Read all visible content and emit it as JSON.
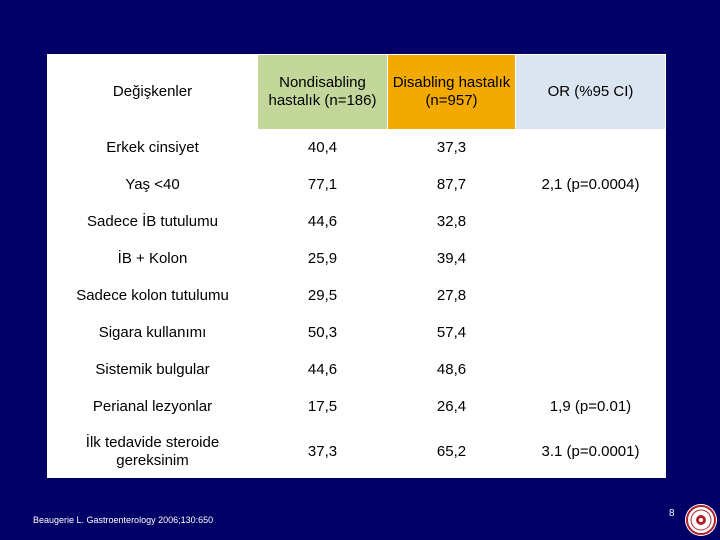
{
  "table": {
    "headers": [
      "Değişkenler",
      "Nondisabling hastalık (n=186)",
      "Disabling hastalık (n=957)",
      "OR (%95 CI)"
    ],
    "rows": [
      {
        "label": "Erkek cinsiyet",
        "nondisabling": "40,4",
        "disabling": "37,3",
        "or": ""
      },
      {
        "label": "Yaş <40",
        "nondisabling": "77,1",
        "disabling": "87,7",
        "or": "2,1  (p=0.0004)"
      },
      {
        "label": "Sadece İB tutulumu",
        "nondisabling": "44,6",
        "disabling": "32,8",
        "or": ""
      },
      {
        "label": "İB + Kolon",
        "nondisabling": "25,9",
        "disabling": "39,4",
        "or": ""
      },
      {
        "label": "Sadece kolon tutulumu",
        "nondisabling": "29,5",
        "disabling": "27,8",
        "or": ""
      },
      {
        "label": "Sigara kullanımı",
        "nondisabling": "50,3",
        "disabling": "57,4",
        "or": ""
      },
      {
        "label": "Sistemik bulgular",
        "nondisabling": "44,6",
        "disabling": "48,6",
        "or": ""
      },
      {
        "label": "Perianal  lezyonlar",
        "nondisabling": "17,5",
        "disabling": "26,4",
        "or": "1,9  (p=0.01)"
      },
      {
        "label": "İlk tedavide steroide gereksinim",
        "nondisabling": "37,3",
        "disabling": "65,2",
        "or": "3.1  (p=0.0001)"
      }
    ]
  },
  "footer": {
    "reference": "Beaugerie L. Gastroenterology 2006;130:650",
    "page_number": "8"
  },
  "colors": {
    "background": "#000066",
    "nondisabling_header": "#c4d79b",
    "disabling_header": "#f2a900",
    "or_header": "#dbe4f1",
    "seal": "#b0202a"
  },
  "icons": {
    "seal": "university-seal-icon"
  }
}
